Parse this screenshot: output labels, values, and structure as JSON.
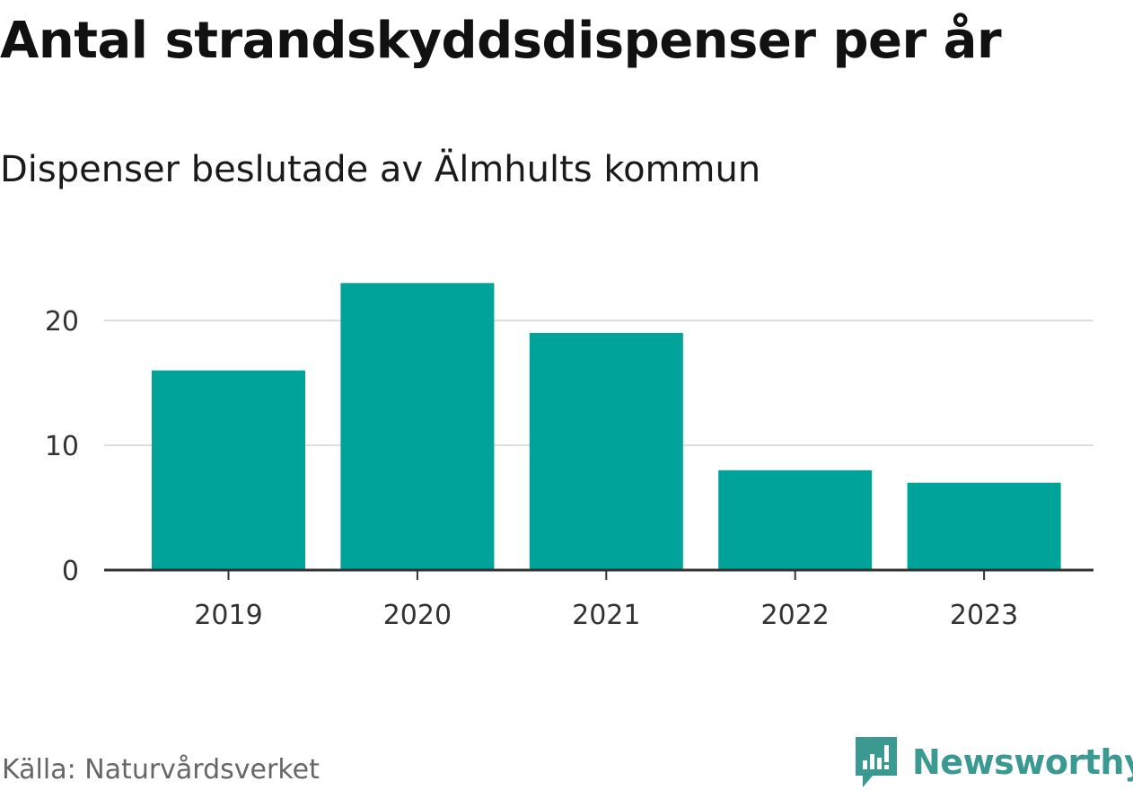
{
  "title": "Antal strandskyddsdispenser per år",
  "subtitle": "Dispenser beslutade av Älmhults kommun",
  "source": "Källa: Naturvårdsverket",
  "brand": {
    "name": "Newsworthy",
    "icon": "newsworthy-logo-icon",
    "color": "#3a9a92"
  },
  "colors": {
    "bar": "#00a39a",
    "grid": "#dddddd",
    "axis": "#333333",
    "tick_text": "#333333"
  },
  "chart_data": {
    "type": "bar",
    "title": "Antal strandskyddsdispenser per år",
    "subtitle": "Dispenser beslutade av Älmhults kommun",
    "categories": [
      "2019",
      "2020",
      "2021",
      "2022",
      "2023"
    ],
    "values": [
      16,
      23,
      19,
      8,
      7
    ],
    "ylim": [
      0,
      25
    ],
    "yticks": [
      0,
      10,
      20
    ],
    "xlabel": "",
    "ylabel": "",
    "grid": true,
    "legend": "none"
  }
}
